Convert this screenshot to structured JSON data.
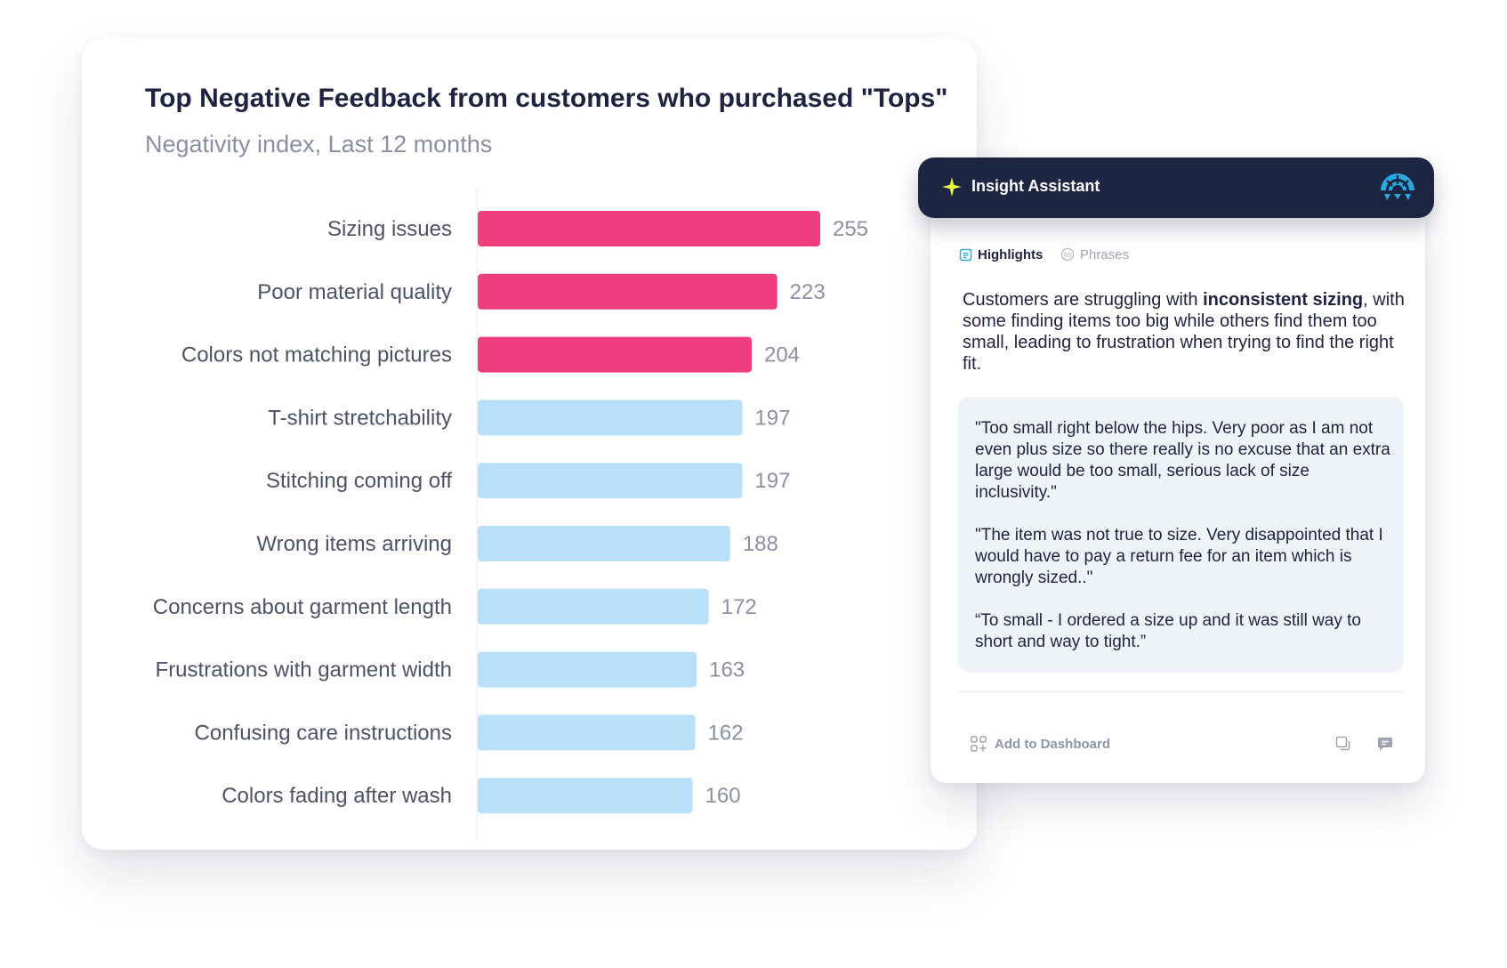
{
  "chart_data": {
    "type": "bar",
    "orientation": "horizontal",
    "title": "Top Negative Feedback from customers who purchased \"Tops\"",
    "subtitle": "Negativity index, Last 12 months",
    "categories": [
      "Sizing issues",
      "Poor material quality",
      "Colors not matching pictures",
      "T-shirt stretchability",
      "Stitching coming off",
      "Wrong items arriving",
      "Concerns about garment length",
      "Frustrations with garment width",
      "Confusing care instructions",
      "Colors fading after wash"
    ],
    "values": [
      255,
      223,
      204,
      197,
      197,
      188,
      172,
      163,
      162,
      160
    ],
    "highlight_count": 3,
    "colors": {
      "highlight": "#ef3e7e",
      "default": "#b8e1f9"
    },
    "grid": false,
    "legend": "none"
  },
  "assistant": {
    "title": "Insight Assistant",
    "brand_icon": "dashboard-gauge-icon",
    "tabs": [
      {
        "label": "Highlights",
        "icon": "document-icon"
      },
      {
        "label": "Phrases",
        "icon": "quote-bubble-icon"
      }
    ],
    "summary": {
      "before": "Customers are struggling with ",
      "emphasis": "inconsistent sizing",
      "after": ", with some finding items too big while others find them too small, leading to frustration when trying to find the right fit."
    },
    "quotes": [
      "\"Too small right below the hips. Very poor as I am not even plus size so there really is no excuse that an extra large would be too small, serious lack of size inclusivity.\"",
      "\"The item was not true to size. Very disappointed that I would have to pay a return fee for an item which is wrongly sized..\"",
      "“To small - I ordered a size up and it was still way to short and way to tight.”"
    ],
    "footer": {
      "add_label": "Add to Dashboard",
      "add_icon": "grid-plus-icon",
      "copy_icon": "copy-icon",
      "feedback_icon": "feedback-icon"
    },
    "colors": {
      "header_bg": "#1c2541",
      "accent": "#29a8e0",
      "star": "#e8f540"
    }
  }
}
